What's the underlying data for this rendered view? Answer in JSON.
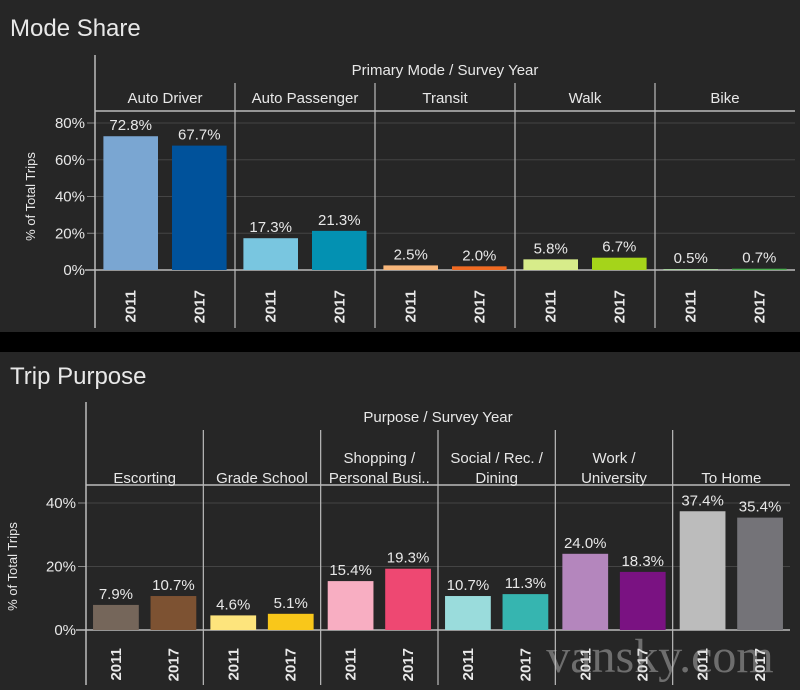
{
  "chart_data": [
    {
      "type": "bar",
      "title": "Mode Share",
      "header": "Primary Mode  /  Survey Year",
      "ylabel": "% of Total Trips",
      "ylim": [
        0,
        80
      ],
      "yticks": [
        "0%",
        "20%",
        "40%",
        "60%",
        "80%"
      ],
      "ytick_values": [
        0,
        20,
        40,
        60,
        80
      ],
      "grid": true,
      "groups": [
        {
          "label": [
            "Auto Driver"
          ],
          "years": [
            "2011",
            "2017"
          ],
          "values": [
            72.8,
            67.7
          ],
          "labels": [
            "72.8%",
            "67.7%"
          ],
          "colors": [
            "#7aa6d2",
            "#00529b"
          ]
        },
        {
          "label": [
            "Auto Passenger"
          ],
          "years": [
            "2011",
            "2017"
          ],
          "values": [
            17.3,
            21.3
          ],
          "labels": [
            "17.3%",
            "21.3%"
          ],
          "colors": [
            "#79c6e0",
            "#0391b2"
          ]
        },
        {
          "label": [
            "Transit"
          ],
          "years": [
            "2011",
            "2017"
          ],
          "values": [
            2.5,
            2.0
          ],
          "labels": [
            "2.5%",
            "2.0%"
          ],
          "colors": [
            "#f7b67a",
            "#f06a22"
          ]
        },
        {
          "label": [
            "Walk"
          ],
          "years": [
            "2011",
            "2017"
          ],
          "values": [
            5.8,
            6.7
          ],
          "labels": [
            "5.8%",
            "6.7%"
          ],
          "colors": [
            "#d7ec8a",
            "#a5d41a"
          ]
        },
        {
          "label": [
            "Bike"
          ],
          "years": [
            "2011",
            "2017"
          ],
          "values": [
            0.5,
            0.7
          ],
          "labels": [
            "0.5%",
            "0.7%"
          ],
          "colors": [
            "#a8d8a0",
            "#4caf50"
          ]
        }
      ]
    },
    {
      "type": "bar",
      "title": "Trip Purpose",
      "header": "Purpose  /  Survey Year",
      "ylabel": "% of Total Trips",
      "ylim": [
        0,
        40
      ],
      "yticks": [
        "0%",
        "20%",
        "40%"
      ],
      "ytick_values": [
        0,
        20,
        40
      ],
      "grid": true,
      "groups": [
        {
          "label": [
            "Escorting"
          ],
          "years": [
            "2011",
            "2017"
          ],
          "values": [
            7.9,
            10.7
          ],
          "labels": [
            "7.9%",
            "10.7%"
          ],
          "colors": [
            "#75665a",
            "#7d5232"
          ]
        },
        {
          "label": [
            "Grade School"
          ],
          "years": [
            "2011",
            "2017"
          ],
          "values": [
            4.6,
            5.1
          ],
          "labels": [
            "4.6%",
            "5.1%"
          ],
          "colors": [
            "#fde47c",
            "#f9c71a"
          ]
        },
        {
          "label": [
            "Shopping /",
            "Personal Busi.."
          ],
          "years": [
            "2011",
            "2017"
          ],
          "values": [
            15.4,
            19.3
          ],
          "labels": [
            "15.4%",
            "19.3%"
          ],
          "colors": [
            "#f8aec2",
            "#ee4872"
          ]
        },
        {
          "label": [
            "Social / Rec. /",
            "Dining"
          ],
          "years": [
            "2011",
            "2017"
          ],
          "values": [
            10.7,
            11.3
          ],
          "labels": [
            "10.7%",
            "11.3%"
          ],
          "colors": [
            "#9adcdc",
            "#36b5b0"
          ]
        },
        {
          "label": [
            "Work /",
            "University"
          ],
          "years": [
            "2011",
            "2017"
          ],
          "values": [
            24.0,
            18.3
          ],
          "labels": [
            "24.0%",
            "18.3%"
          ],
          "colors": [
            "#b486bd",
            "#7a1282"
          ]
        },
        {
          "label": [
            "To Home"
          ],
          "years": [
            "2011",
            "2017"
          ],
          "values": [
            37.4,
            35.4
          ],
          "labels": [
            "37.4%",
            "35.4%"
          ],
          "colors": [
            "#bcbcbc",
            "#747378"
          ]
        }
      ]
    }
  ],
  "watermark": "vansky.com"
}
